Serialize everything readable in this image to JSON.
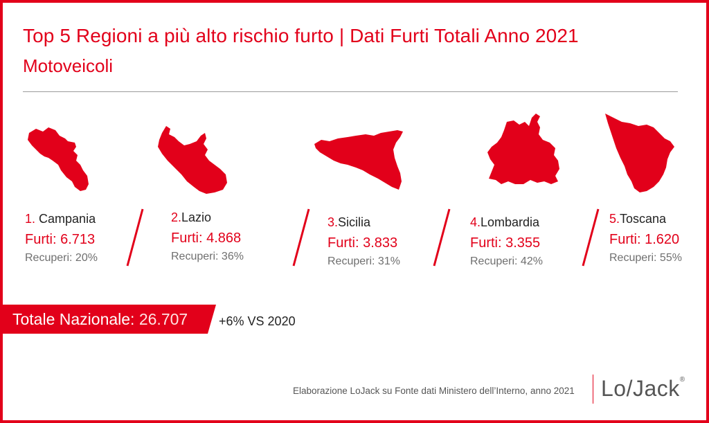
{
  "title": "Top 5 Regioni a più alto rischio furto | Dati Furti Totali Anno 2021",
  "subtitle": "Motoveicoli",
  "regions": [
    {
      "rank": "1.",
      "name": "Campania",
      "furti": "Furti: 6.713",
      "recuperi": "Recuperi: 20%",
      "icon": "campania-map-icon"
    },
    {
      "rank": "2.",
      "name": "Lazio",
      "furti": "Furti: 4.868",
      "recuperi": "Recuperi: 36%",
      "icon": "lazio-map-icon"
    },
    {
      "rank": "3.",
      "name": "Sicilia",
      "furti": "Furti: 3.833",
      "recuperi": "Recuperi: 31%",
      "icon": "sicilia-map-icon"
    },
    {
      "rank": "4.",
      "name": "Lombardia",
      "furti": "Furti: 3.355",
      "recuperi": "Recuperi: 42%",
      "icon": "lombardia-map-icon"
    },
    {
      "rank": "5.",
      "name": "Toscana",
      "furti": "Furti: 1.620",
      "recuperi": "Recuperi: 55%",
      "icon": "toscana-map-icon"
    }
  ],
  "total": {
    "label": "Totale Nazionale:",
    "value": "26.707",
    "delta": "+6% VS 2020"
  },
  "source": "Elaborazione LoJack su Fonte dati Ministero dell’Interno, anno 2021",
  "logo": "Lo/Jack",
  "colors": {
    "accent": "#e2001a",
    "text": "#222222",
    "muted": "#6f6f6f"
  }
}
